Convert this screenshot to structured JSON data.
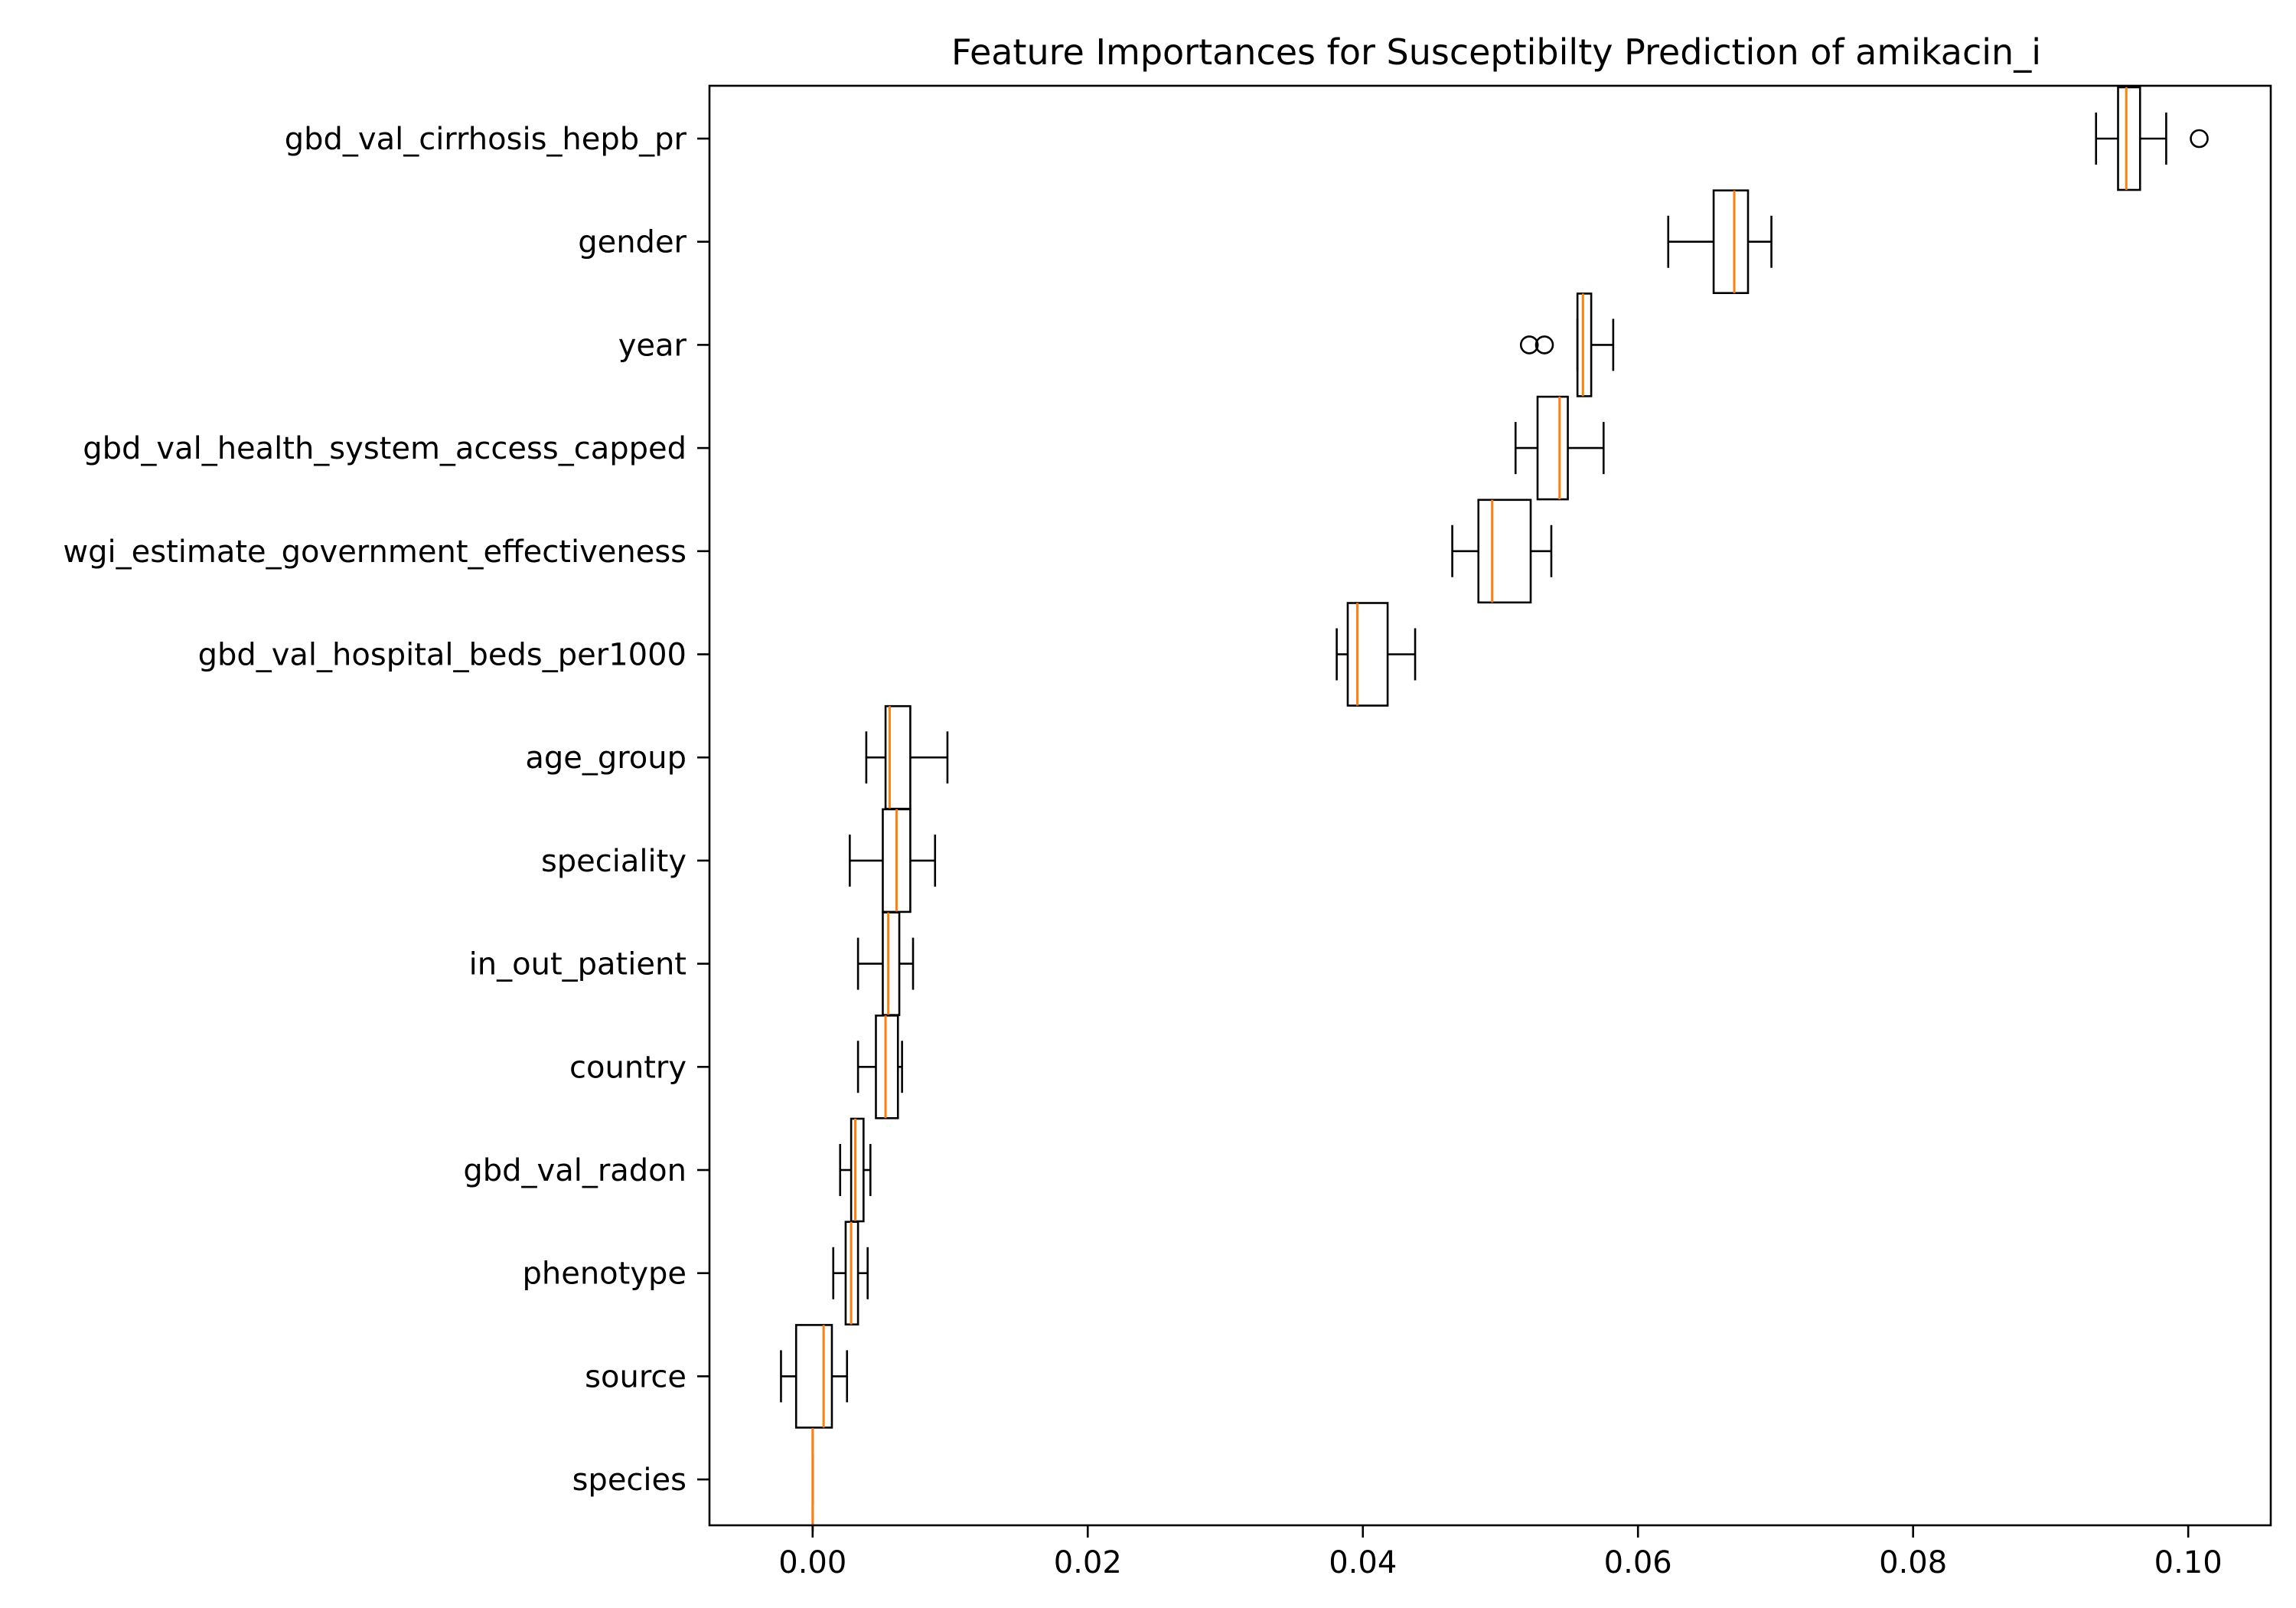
{
  "chart_data": {
    "type": "boxplot",
    "orientation": "horizontal",
    "title": "Feature Importances for Susceptibilty Prediction of amikacin_i",
    "xlabel": "",
    "ylabel": "",
    "xlim": [
      -0.0075,
      0.106
    ],
    "xticks": [
      {
        "value": 0.0,
        "label": "0.00"
      },
      {
        "value": 0.02,
        "label": "0.02"
      },
      {
        "value": 0.04,
        "label": "0.04"
      },
      {
        "value": 0.06,
        "label": "0.06"
      },
      {
        "value": 0.08,
        "label": "0.08"
      },
      {
        "value": 0.1,
        "label": "0.10"
      }
    ],
    "grid": false,
    "colors": {
      "box": "#000000",
      "median": "#ff7f0e",
      "background": "#ffffff"
    },
    "features": [
      {
        "name": "gbd_val_cirrhosis_hepb_pr",
        "whisker_low": 0.0933,
        "q1": 0.0949,
        "median": 0.0955,
        "q3": 0.0965,
        "whisker_high": 0.0984,
        "outliers": [
          0.1008
        ]
      },
      {
        "name": "gender",
        "whisker_low": 0.0622,
        "q1": 0.0655,
        "median": 0.067,
        "q3": 0.068,
        "whisker_high": 0.0697,
        "outliers": []
      },
      {
        "name": "year",
        "whisker_low": 0.0556,
        "q1": 0.0556,
        "median": 0.056,
        "q3": 0.0566,
        "whisker_high": 0.0582,
        "outliers": [
          0.0521,
          0.0532
        ]
      },
      {
        "name": "gbd_val_health_system_access_capped",
        "whisker_low": 0.0511,
        "q1": 0.0527,
        "median": 0.0543,
        "q3": 0.0549,
        "whisker_high": 0.0575,
        "outliers": []
      },
      {
        "name": "wgi_estimate_government_effectiveness",
        "whisker_low": 0.0465,
        "q1": 0.0484,
        "median": 0.0494,
        "q3": 0.0522,
        "whisker_high": 0.0537,
        "outliers": []
      },
      {
        "name": "gbd_val_hospital_beds_per1000",
        "whisker_low": 0.0381,
        "q1": 0.0389,
        "median": 0.0396,
        "q3": 0.0418,
        "whisker_high": 0.0438,
        "outliers": []
      },
      {
        "name": "age_group",
        "whisker_low": 0.0039,
        "q1": 0.0053,
        "median": 0.0056,
        "q3": 0.0071,
        "whisker_high": 0.0098,
        "outliers": []
      },
      {
        "name": "speciality",
        "whisker_low": 0.0027,
        "q1": 0.0051,
        "median": 0.0061,
        "q3": 0.0071,
        "whisker_high": 0.0089,
        "outliers": []
      },
      {
        "name": "in_out_patient",
        "whisker_low": 0.0033,
        "q1": 0.0051,
        "median": 0.0055,
        "q3": 0.0063,
        "whisker_high": 0.0073,
        "outliers": []
      },
      {
        "name": "country",
        "whisker_low": 0.0033,
        "q1": 0.0046,
        "median": 0.0053,
        "q3": 0.0062,
        "whisker_high": 0.0065,
        "outliers": []
      },
      {
        "name": "gbd_val_radon",
        "whisker_low": 0.002,
        "q1": 0.0028,
        "median": 0.0031,
        "q3": 0.0037,
        "whisker_high": 0.0042,
        "outliers": []
      },
      {
        "name": "phenotype",
        "whisker_low": 0.0015,
        "q1": 0.0024,
        "median": 0.0028,
        "q3": 0.0033,
        "whisker_high": 0.004,
        "outliers": []
      },
      {
        "name": "source",
        "whisker_low": -0.0023,
        "q1": -0.0012,
        "median": 0.0008,
        "q3": 0.0014,
        "whisker_high": 0.0025,
        "outliers": []
      },
      {
        "name": "species",
        "whisker_low": 0.0,
        "q1": 0.0,
        "median": 0.0,
        "q3": 0.0,
        "whisker_high": 0.0,
        "outliers": []
      }
    ]
  }
}
